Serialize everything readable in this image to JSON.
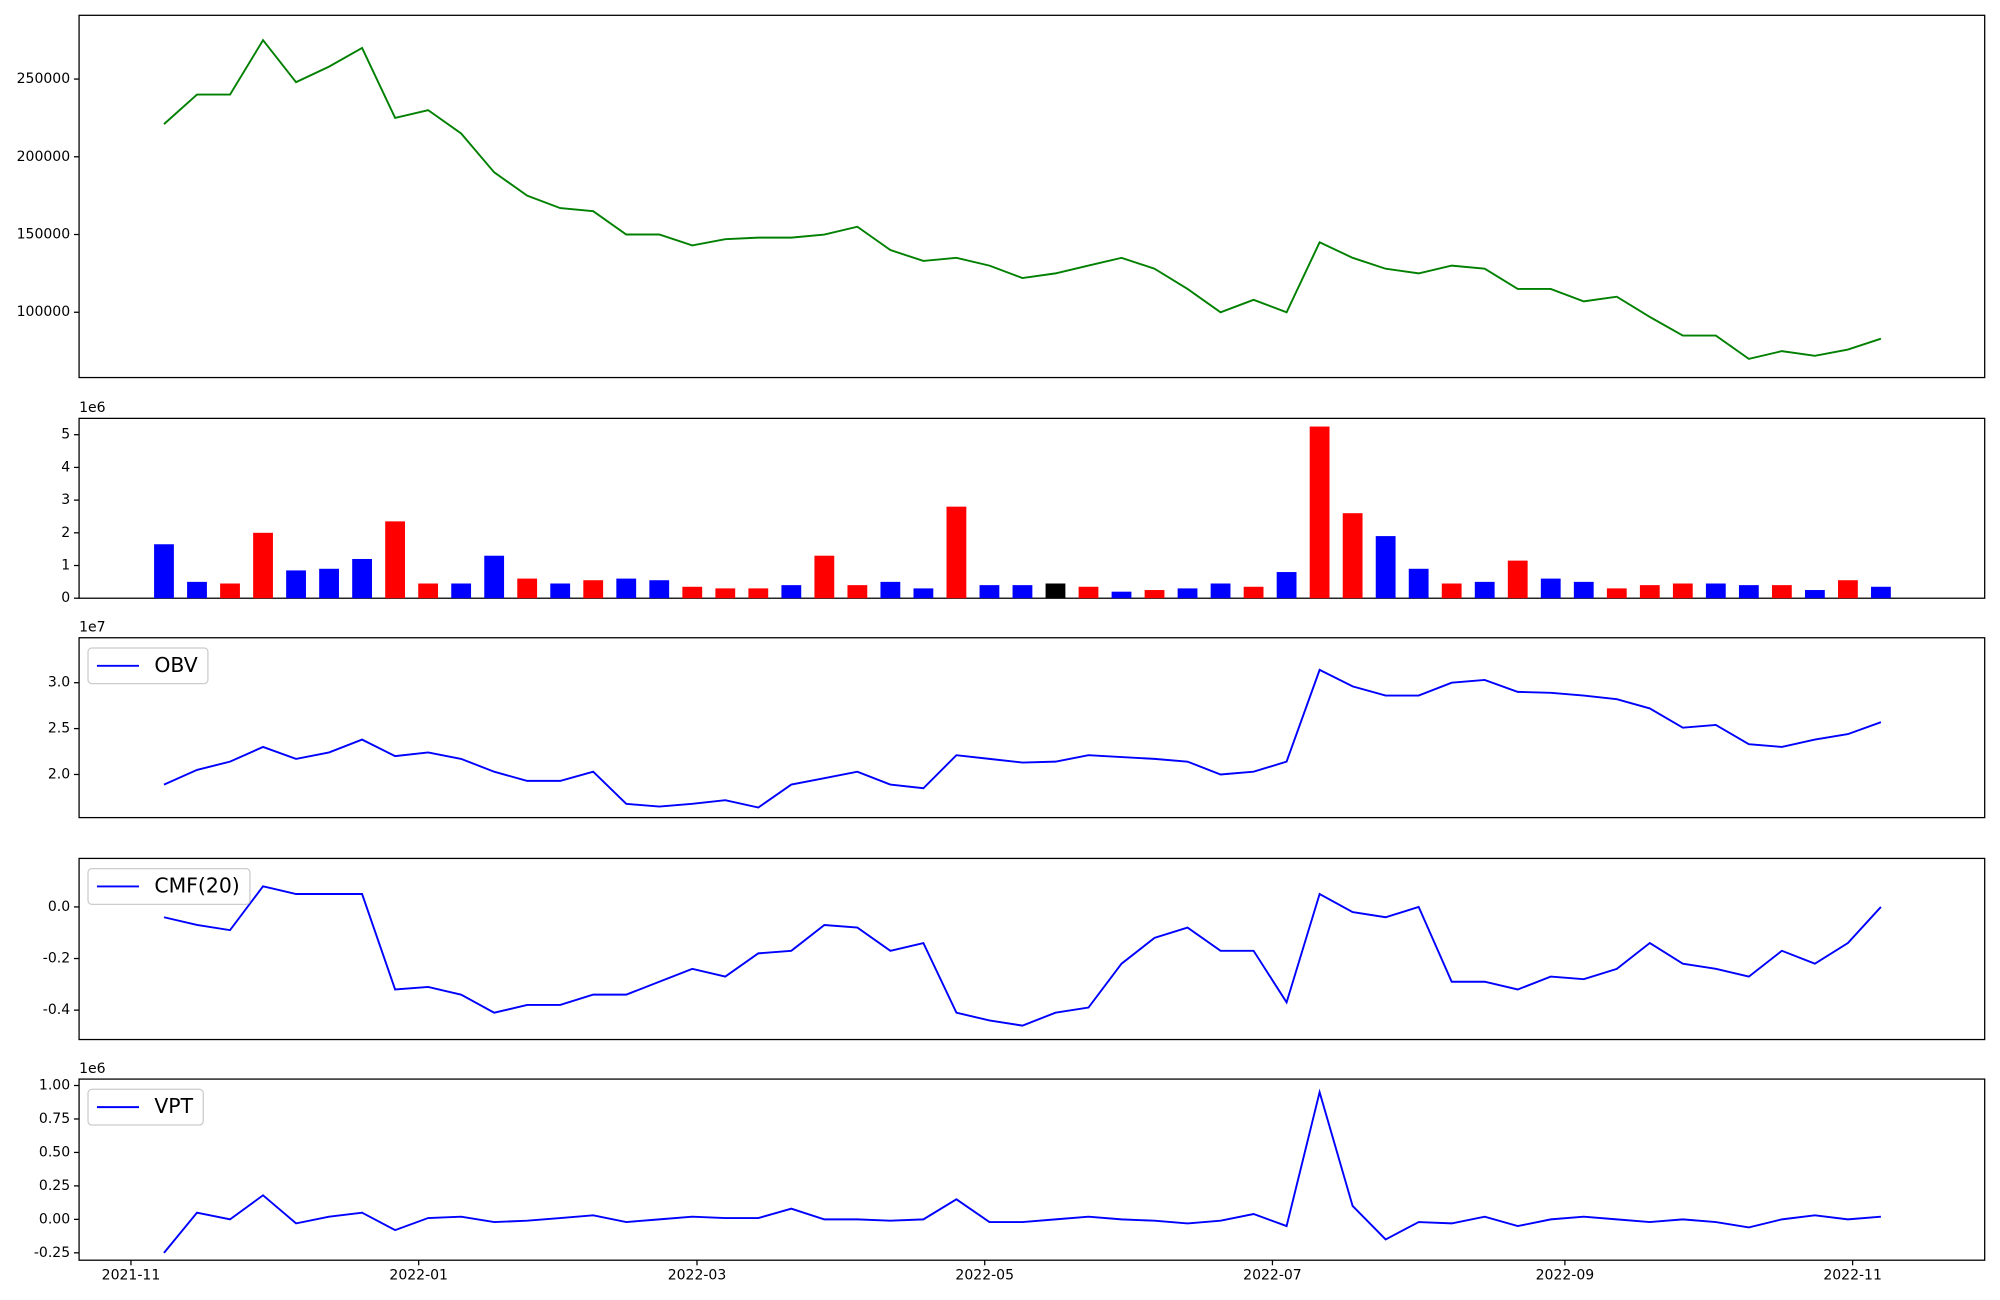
{
  "chart_data": [
    {
      "type": "line",
      "color": "#008000",
      "x": [
        "2021-11-08",
        "2021-11-15",
        "2021-11-22",
        "2021-11-29",
        "2021-12-06",
        "2021-12-13",
        "2021-12-20",
        "2021-12-27",
        "2022-01-03",
        "2022-01-10",
        "2022-01-17",
        "2022-01-24",
        "2022-01-31",
        "2022-02-07",
        "2022-02-14",
        "2022-02-21",
        "2022-02-28",
        "2022-03-07",
        "2022-03-14",
        "2022-03-21",
        "2022-03-28",
        "2022-04-04",
        "2022-04-11",
        "2022-04-18",
        "2022-04-25",
        "2022-05-02",
        "2022-05-09",
        "2022-05-16",
        "2022-05-23",
        "2022-05-30",
        "2022-06-06",
        "2022-06-13",
        "2022-06-20",
        "2022-06-27",
        "2022-07-04",
        "2022-07-11",
        "2022-07-18",
        "2022-07-25",
        "2022-08-01",
        "2022-08-08",
        "2022-08-15",
        "2022-08-22",
        "2022-08-29",
        "2022-09-05",
        "2022-09-12",
        "2022-09-19",
        "2022-09-26",
        "2022-10-03",
        "2022-10-10",
        "2022-10-17",
        "2022-10-24",
        "2022-10-31",
        "2022-11-07"
      ],
      "values": [
        221000,
        240000,
        240000,
        275000,
        248000,
        258000,
        270000,
        225000,
        230000,
        215000,
        190000,
        175000,
        167000,
        165000,
        150000,
        150000,
        143000,
        147000,
        148000,
        148000,
        150000,
        155000,
        140000,
        133000,
        135000,
        130000,
        122000,
        125000,
        130000,
        135000,
        128000,
        115000,
        100000,
        108000,
        100000,
        145000,
        135000,
        128000,
        125000,
        130000,
        128000,
        115000,
        115000,
        107000,
        110000,
        97000,
        85000,
        85000,
        70000,
        75000,
        72000,
        76000,
        83000
      ],
      "xlim": [
        "2021-10-21",
        "2022-11-29"
      ],
      "ylim": [
        58000,
        291000
      ],
      "yticks": [
        100000,
        150000,
        200000,
        250000
      ]
    },
    {
      "type": "bar",
      "offset": "1e6",
      "x": [
        "2021-11-08",
        "2021-11-15",
        "2021-11-22",
        "2021-11-29",
        "2021-12-06",
        "2021-12-13",
        "2021-12-20",
        "2021-12-27",
        "2022-01-03",
        "2022-01-10",
        "2022-01-17",
        "2022-01-24",
        "2022-01-31",
        "2022-02-07",
        "2022-02-14",
        "2022-02-21",
        "2022-02-28",
        "2022-03-07",
        "2022-03-14",
        "2022-03-21",
        "2022-03-28",
        "2022-04-04",
        "2022-04-11",
        "2022-04-18",
        "2022-04-25",
        "2022-05-02",
        "2022-05-09",
        "2022-05-16",
        "2022-05-23",
        "2022-05-30",
        "2022-06-06",
        "2022-06-13",
        "2022-06-20",
        "2022-06-27",
        "2022-07-04",
        "2022-07-11",
        "2022-07-18",
        "2022-07-25",
        "2022-08-01",
        "2022-08-08",
        "2022-08-15",
        "2022-08-22",
        "2022-08-29",
        "2022-09-05",
        "2022-09-12",
        "2022-09-19",
        "2022-09-26",
        "2022-10-03",
        "2022-10-10",
        "2022-10-17",
        "2022-10-24",
        "2022-10-31",
        "2022-11-07"
      ],
      "values": [
        1.65,
        0.5,
        0.45,
        2.0,
        0.85,
        0.9,
        1.2,
        2.35,
        0.45,
        0.45,
        1.3,
        0.6,
        0.45,
        0.55,
        0.6,
        0.55,
        0.35,
        0.3,
        0.3,
        0.4,
        1.3,
        0.4,
        0.5,
        0.3,
        2.8,
        0.4,
        0.4,
        0.45,
        0.35,
        0.2,
        0.25,
        0.3,
        0.45,
        0.35,
        0.8,
        5.25,
        2.6,
        1.9,
        0.9,
        0.45,
        0.5,
        1.15,
        0.6,
        0.5,
        0.3,
        0.4,
        0.45,
        0.45,
        0.4,
        0.4,
        0.25,
        0.55,
        0.35
      ],
      "colors": [
        "blue",
        "blue",
        "red",
        "red",
        "blue",
        "blue",
        "blue",
        "red",
        "red",
        "blue",
        "blue",
        "red",
        "blue",
        "red",
        "blue",
        "blue",
        "red",
        "red",
        "red",
        "blue",
        "red",
        "red",
        "blue",
        "blue",
        "red",
        "blue",
        "blue",
        "black",
        "red",
        "blue",
        "red",
        "blue",
        "blue",
        "red",
        "blue",
        "red",
        "red",
        "blue",
        "blue",
        "red",
        "blue",
        "red",
        "blue",
        "blue",
        "red",
        "red",
        "red",
        "blue",
        "blue",
        "red",
        "blue",
        "red",
        "blue"
      ],
      "xlim": [
        "2021-10-21",
        "2022-11-29"
      ],
      "ylim": [
        0,
        5.5
      ],
      "yticks": [
        0,
        1,
        2,
        3,
        4,
        5
      ]
    },
    {
      "type": "line",
      "offset": "1e7",
      "legend": "upper left",
      "x": [
        "2021-11-08",
        "2021-11-15",
        "2021-11-22",
        "2021-11-29",
        "2021-12-06",
        "2021-12-13",
        "2021-12-20",
        "2021-12-27",
        "2022-01-03",
        "2022-01-10",
        "2022-01-17",
        "2022-01-24",
        "2022-01-31",
        "2022-02-07",
        "2022-02-14",
        "2022-02-21",
        "2022-02-28",
        "2022-03-07",
        "2022-03-14",
        "2022-03-21",
        "2022-03-28",
        "2022-04-04",
        "2022-04-11",
        "2022-04-18",
        "2022-04-25",
        "2022-05-02",
        "2022-05-09",
        "2022-05-16",
        "2022-05-23",
        "2022-05-30",
        "2022-06-06",
        "2022-06-13",
        "2022-06-20",
        "2022-06-27",
        "2022-07-04",
        "2022-07-11",
        "2022-07-18",
        "2022-07-25",
        "2022-08-01",
        "2022-08-08",
        "2022-08-15",
        "2022-08-22",
        "2022-08-29",
        "2022-09-05",
        "2022-09-12",
        "2022-09-19",
        "2022-09-26",
        "2022-10-03",
        "2022-10-10",
        "2022-10-17",
        "2022-10-24",
        "2022-10-31",
        "2022-11-07"
      ],
      "series": [
        {
          "name": "OBV",
          "color": "#0000ff",
          "values": [
            1.89,
            2.05,
            2.14,
            2.3,
            2.17,
            2.24,
            2.38,
            2.2,
            2.24,
            2.17,
            2.03,
            1.93,
            1.93,
            2.03,
            1.68,
            1.65,
            1.68,
            1.72,
            1.64,
            1.89,
            1.96,
            2.03,
            1.89,
            1.85,
            2.21,
            2.17,
            2.13,
            2.14,
            2.21,
            2.19,
            2.17,
            2.14,
            2.0,
            2.03,
            2.14,
            3.14,
            2.96,
            2.86,
            2.86,
            3.0,
            3.03,
            2.9,
            2.89,
            2.86,
            2.82,
            2.72,
            2.51,
            2.54,
            2.33,
            2.3,
            2.38,
            2.44,
            2.57
          ]
        }
      ],
      "xlim": [
        "2021-10-21",
        "2022-11-29"
      ],
      "ylim": [
        1.53,
        3.49
      ],
      "yticks": [
        {
          "value": 2,
          "label": "2.0"
        },
        2.5,
        {
          "value": 3,
          "label": "3.0"
        }
      ]
    },
    {
      "type": "line",
      "legend": "upper left",
      "x": [
        "2021-11-08",
        "2021-11-15",
        "2021-11-22",
        "2021-11-29",
        "2021-12-06",
        "2021-12-13",
        "2021-12-20",
        "2021-12-27",
        "2022-01-03",
        "2022-01-10",
        "2022-01-17",
        "2022-01-24",
        "2022-01-31",
        "2022-02-07",
        "2022-02-14",
        "2022-02-21",
        "2022-02-28",
        "2022-03-07",
        "2022-03-14",
        "2022-03-21",
        "2022-03-28",
        "2022-04-04",
        "2022-04-11",
        "2022-04-18",
        "2022-04-25",
        "2022-05-02",
        "2022-05-09",
        "2022-05-16",
        "2022-05-23",
        "2022-05-30",
        "2022-06-06",
        "2022-06-13",
        "2022-06-20",
        "2022-06-27",
        "2022-07-04",
        "2022-07-11",
        "2022-07-18",
        "2022-07-25",
        "2022-08-01",
        "2022-08-08",
        "2022-08-15",
        "2022-08-22",
        "2022-08-29",
        "2022-09-05",
        "2022-09-12",
        "2022-09-19",
        "2022-09-26",
        "2022-10-03",
        "2022-10-10",
        "2022-10-17",
        "2022-10-24",
        "2022-10-31",
        "2022-11-07"
      ],
      "series": [
        {
          "name": "CMF(20)",
          "color": "#0000ff",
          "values": [
            -0.04,
            -0.07,
            -0.09,
            0.08,
            0.05,
            0.05,
            0.05,
            -0.32,
            -0.31,
            -0.34,
            -0.41,
            -0.38,
            -0.38,
            -0.34,
            -0.34,
            -0.29,
            -0.24,
            -0.27,
            -0.18,
            -0.17,
            -0.07,
            -0.08,
            -0.17,
            -0.14,
            -0.41,
            -0.44,
            -0.46,
            -0.41,
            -0.39,
            -0.22,
            -0.12,
            -0.08,
            -0.17,
            -0.17,
            -0.37,
            0.05,
            -0.02,
            -0.04,
            0.0,
            -0.29,
            -0.29,
            -0.32,
            -0.27,
            -0.28,
            -0.24,
            -0.14,
            -0.22,
            -0.24,
            -0.27,
            -0.17,
            -0.22,
            -0.14,
            0.0
          ]
        }
      ],
      "xlim": [
        "2021-10-21",
        "2022-11-29"
      ],
      "ylim": [
        -0.514,
        0.188
      ],
      "yticks": [
        -0.4,
        -0.2,
        {
          "value": 0,
          "label": "0.0"
        }
      ]
    },
    {
      "type": "line",
      "offset": "1e6",
      "legend": "upper left",
      "x": [
        "2021-11-08",
        "2021-11-15",
        "2021-11-22",
        "2021-11-29",
        "2021-12-06",
        "2021-12-13",
        "2021-12-20",
        "2021-12-27",
        "2022-01-03",
        "2022-01-10",
        "2022-01-17",
        "2022-01-24",
        "2022-01-31",
        "2022-02-07",
        "2022-02-14",
        "2022-02-21",
        "2022-02-28",
        "2022-03-07",
        "2022-03-14",
        "2022-03-21",
        "2022-03-28",
        "2022-04-04",
        "2022-04-11",
        "2022-04-18",
        "2022-04-25",
        "2022-05-02",
        "2022-05-09",
        "2022-05-16",
        "2022-05-23",
        "2022-05-30",
        "2022-06-06",
        "2022-06-13",
        "2022-06-20",
        "2022-06-27",
        "2022-07-04",
        "2022-07-11",
        "2022-07-18",
        "2022-07-25",
        "2022-08-01",
        "2022-08-08",
        "2022-08-15",
        "2022-08-22",
        "2022-08-29",
        "2022-09-05",
        "2022-09-12",
        "2022-09-19",
        "2022-09-26",
        "2022-10-03",
        "2022-10-10",
        "2022-10-17",
        "2022-10-24",
        "2022-10-31",
        "2022-11-07"
      ],
      "series": [
        {
          "name": "VPT",
          "color": "#0000ff",
          "values": [
            -0.25,
            0.05,
            0.0,
            0.18,
            -0.03,
            0.02,
            0.05,
            -0.08,
            0.01,
            0.02,
            -0.02,
            -0.01,
            0.01,
            0.03,
            -0.02,
            0.0,
            0.02,
            0.01,
            0.01,
            0.08,
            0.0,
            0.0,
            -0.01,
            0.0,
            0.15,
            -0.02,
            -0.02,
            0.0,
            0.02,
            0.0,
            -0.01,
            -0.03,
            -0.01,
            0.04,
            -0.05,
            0.95,
            0.1,
            -0.15,
            -0.02,
            -0.03,
            0.02,
            -0.05,
            0.0,
            0.02,
            0.0,
            -0.02,
            0.0,
            -0.02,
            -0.06,
            0.0,
            0.03,
            0.0,
            0.02
          ]
        }
      ],
      "xlim": [
        "2021-10-21",
        "2022-11-29"
      ],
      "ylim": [
        -0.305,
        1.048
      ],
      "yticks": [
        -0.25,
        {
          "value": 0,
          "label": "0.00"
        },
        0.25,
        {
          "value": 0.5,
          "label": "0.50"
        },
        0.75,
        {
          "value": 1,
          "label": "1.00"
        }
      ],
      "xticks": [
        "2021-11",
        "2022-01",
        "2022-03",
        "2022-05",
        "2022-07",
        "2022-09",
        "2022-11"
      ]
    }
  ]
}
